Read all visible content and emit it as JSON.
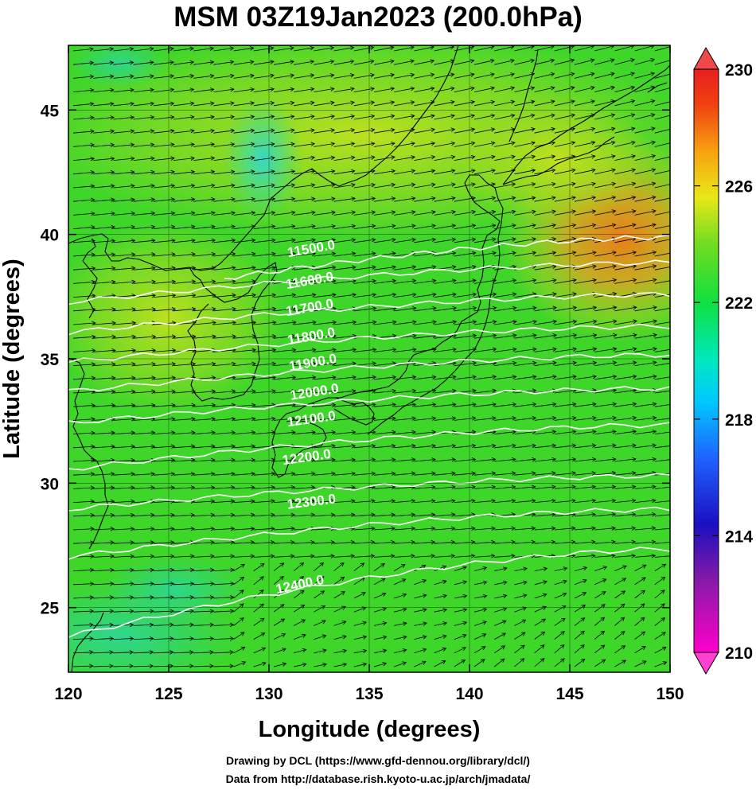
{
  "title": "MSM 03Z19Jan2023 (200.0hPa)",
  "credits": {
    "drawing": "Drawing by DCL (https://www.gfd-dennou.org/library/dcl/)",
    "data": "Data from http://database.rish.kyoto-u.ac.jp/arch/jmadata/"
  },
  "axes": {
    "xlabel": "Longitude (degrees)",
    "ylabel": "Latitude  (degrees)",
    "xlim": [
      120,
      150
    ],
    "ylim": [
      22.4,
      47.6
    ],
    "xticks": [
      "120",
      "125",
      "130",
      "135",
      "140",
      "145",
      "150"
    ],
    "yticks": [
      "25",
      "30",
      "35",
      "40",
      "45"
    ]
  },
  "colorbar": {
    "range": [
      210,
      230
    ],
    "tick_labels": [
      "230",
      "226",
      "222",
      "218",
      "214",
      "210"
    ]
  },
  "contours": [
    {
      "value": 11500,
      "label": "11500.0"
    },
    {
      "value": 11600,
      "label": "11600.0"
    },
    {
      "value": 11700,
      "label": "11700.0"
    },
    {
      "value": 11800,
      "label": "11800.0"
    },
    {
      "value": 11900,
      "label": "11900.0"
    },
    {
      "value": 12000,
      "label": "12000.0"
    },
    {
      "value": 12100,
      "label": "12100.0"
    },
    {
      "value": 12200,
      "label": "12200.0"
    },
    {
      "value": 12300,
      "label": "12300.0"
    },
    {
      "value": 12400,
      "label": "12400.0"
    }
  ],
  "colors": {
    "field_base": "#3fd62a",
    "warm_max": "#f07a18",
    "cool_patch": "#30d8d0",
    "contour": "#ffffff",
    "coastline": "#000000",
    "vector": "#000000"
  }
}
